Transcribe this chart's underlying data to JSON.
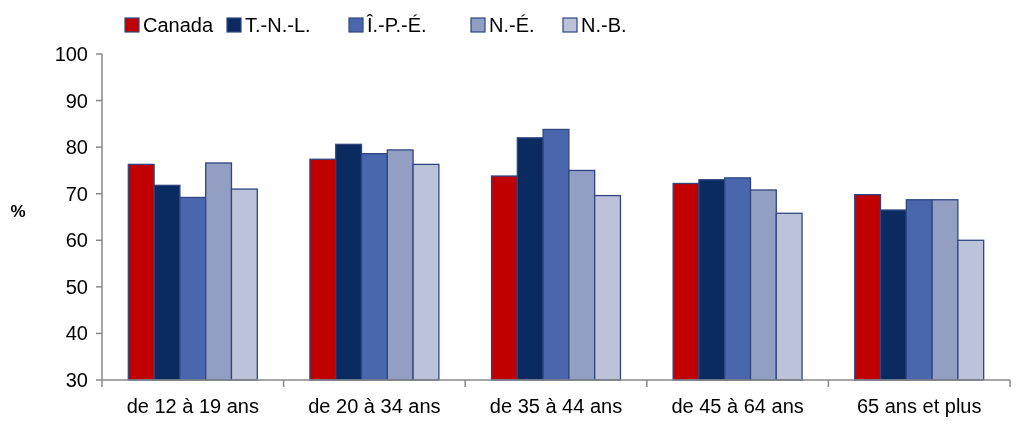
{
  "chart_data": {
    "type": "bar",
    "ylabel": "%",
    "categories": [
      "de 12 à 19 ans",
      "de 20 à 34 ans",
      "de 35 à 44 ans",
      "de 45 à 64 ans",
      "65 ans et plus"
    ],
    "series": [
      {
        "name": "Canada",
        "color": "#c00000",
        "values": [
          76.3,
          77.4,
          73.8,
          72.2,
          69.8
        ]
      },
      {
        "name": "T.-N.-L.",
        "color": "#0a2a60",
        "values": [
          71.8,
          80.6,
          82.0,
          73.0,
          66.5
        ]
      },
      {
        "name": "Î.-P.-É.",
        "color": "#4a67ae",
        "values": [
          69.2,
          78.6,
          83.8,
          73.4,
          68.7
        ]
      },
      {
        "name": "N.-É.",
        "color": "#929ec2",
        "values": [
          76.6,
          79.4,
          75.0,
          70.8,
          68.7
        ]
      },
      {
        "name": "N.-B.",
        "color": "#bcc2d8",
        "values": [
          71.0,
          76.3,
          69.6,
          65.8,
          60.0
        ]
      }
    ],
    "ylim": [
      30,
      100
    ],
    "yticks": [
      30,
      40,
      50,
      60,
      70,
      80,
      90,
      100
    ],
    "grid": false,
    "legend": "top"
  }
}
